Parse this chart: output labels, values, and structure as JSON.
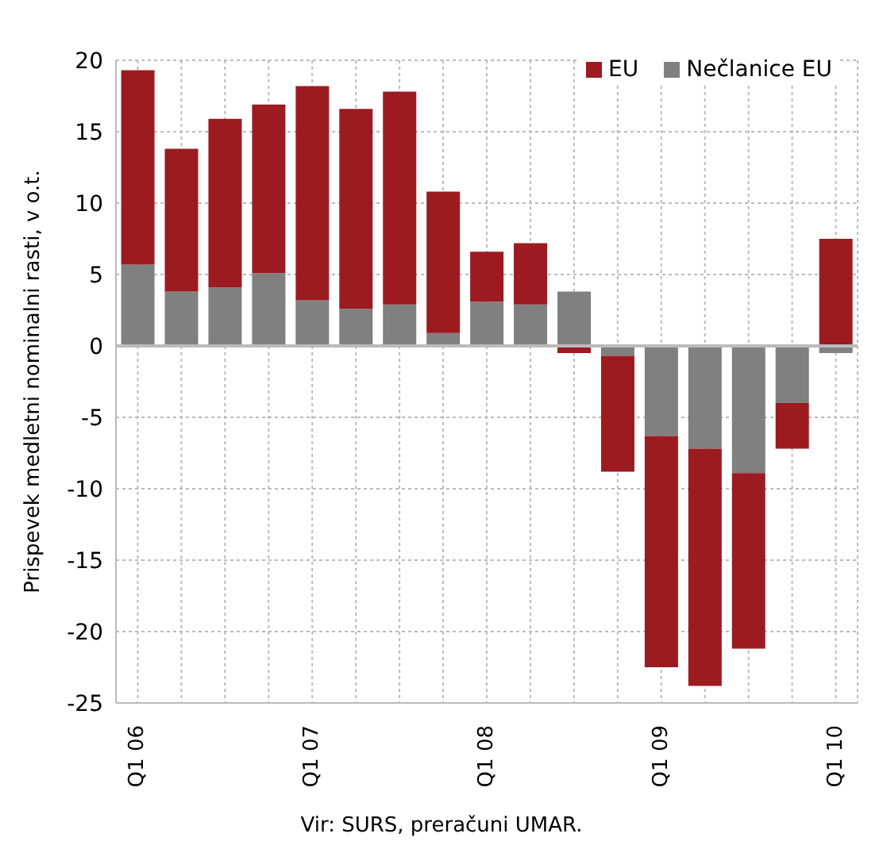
{
  "chart_data": {
    "type": "bar",
    "stacked": true,
    "ylabel": "Prispevek medletni nominalni rasti, v o.t.",
    "categories": [
      "Q1 06",
      null,
      null,
      null,
      "Q1 07",
      null,
      null,
      null,
      "Q1 08",
      null,
      null,
      null,
      "Q1 09",
      null,
      null,
      null,
      "Q1 10"
    ],
    "series": [
      {
        "name": "Nečlanice EU",
        "color": "#808080",
        "values": [
          5.7,
          3.8,
          4.1,
          5.1,
          3.2,
          2.6,
          2.9,
          0.9,
          3.1,
          2.9,
          3.8,
          -0.7,
          -6.3,
          -7.2,
          -8.9,
          -4.0,
          -0.5
        ]
      },
      {
        "name": "EU",
        "color": "#9b1b20",
        "values": [
          13.6,
          10.0,
          11.8,
          11.8,
          15.0,
          14.0,
          14.9,
          9.9,
          3.5,
          4.3,
          -0.5,
          -8.1,
          -16.2,
          -16.6,
          -12.3,
          -3.2,
          7.5
        ]
      }
    ],
    "ylim": [
      -25,
      20
    ],
    "yticks": [
      -25,
      -20,
      -15,
      -10,
      -5,
      0,
      5,
      10,
      15,
      20
    ],
    "grid": true,
    "legend": "top right",
    "annotations": [
      "Vir: SURS, preračuni UMAR."
    ]
  }
}
